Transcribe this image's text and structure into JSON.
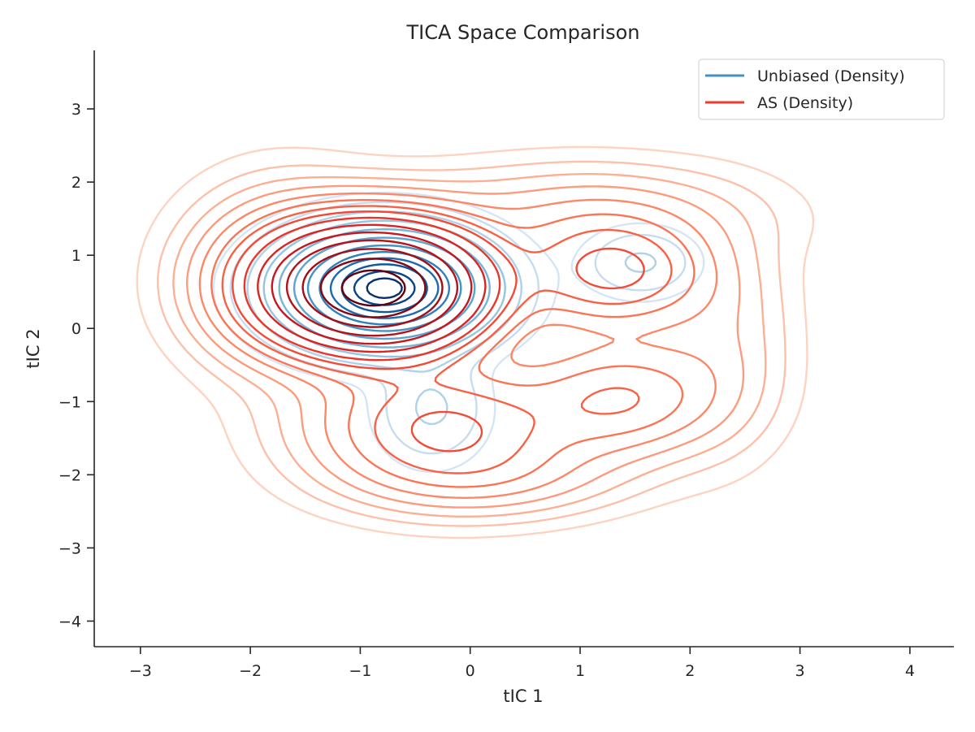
{
  "chart_data": {
    "type": "contour",
    "title": "TICA Space Comparison",
    "xlabel": "tIC 1",
    "ylabel": "tIC 2",
    "xlim": [
      -3.42,
      4.4
    ],
    "ylim": [
      -4.35,
      3.8
    ],
    "xticks": [
      -3,
      -2,
      -1,
      0,
      1,
      2,
      3,
      4
    ],
    "xtick_labels": [
      "−3",
      "−2",
      "−1",
      "0",
      "1",
      "2",
      "3",
      "4"
    ],
    "yticks": [
      -4,
      -3,
      -2,
      -1,
      0,
      1,
      2,
      3
    ],
    "ytick_labels": [
      "−4",
      "−3",
      "−2",
      "−1",
      "0",
      "1",
      "2",
      "3"
    ],
    "grid": false,
    "legend_position": "top-right",
    "series": [
      {
        "name": "Unbiased (Density)",
        "color": "#4292c6",
        "colormap": "Blues",
        "components": [
          {
            "cx": -0.78,
            "cy": 0.55,
            "sx": 0.5,
            "sy": 0.42,
            "w": 1.0
          },
          {
            "cx": 1.55,
            "cy": 0.9,
            "sx": 0.3,
            "sy": 0.28,
            "w": 0.05
          },
          {
            "cx": -0.35,
            "cy": -1.1,
            "sx": 0.3,
            "sy": 0.45,
            "w": 0.05
          }
        ],
        "levels": [
          0.008,
          0.02,
          0.045,
          0.09,
          0.16,
          0.26,
          0.38,
          0.5,
          0.62,
          0.74,
          0.86,
          0.95
        ]
      },
      {
        "name": "AS (Density)",
        "color": "#ef3b2c",
        "colormap": "Reds",
        "components": [
          {
            "cx": -0.85,
            "cy": 0.55,
            "sx": 0.6,
            "sy": 0.52,
            "w": 1.0
          },
          {
            "cx": 1.3,
            "cy": 0.75,
            "sx": 0.55,
            "sy": 0.48,
            "w": 0.16
          },
          {
            "cx": 1.4,
            "cy": -0.95,
            "sx": 0.55,
            "sy": 0.5,
            "w": 0.11
          },
          {
            "cx": -0.25,
            "cy": -1.35,
            "sx": 0.75,
            "sy": 0.55,
            "w": 0.16
          },
          {
            "cx": -1.7,
            "cy": 0.7,
            "sx": 0.55,
            "sy": 0.75,
            "w": 0.09
          },
          {
            "cx": 1.0,
            "cy": 1.55,
            "sx": 1.0,
            "sy": 0.45,
            "w": 0.05
          },
          {
            "cx": 2.3,
            "cy": -0.2,
            "sx": 0.4,
            "sy": 0.9,
            "w": 0.035
          },
          {
            "cx": 0.2,
            "cy": -2.05,
            "sx": 0.8,
            "sy": 0.35,
            "w": 0.04
          }
        ],
        "levels": [
          0.006,
          0.014,
          0.025,
          0.04,
          0.06,
          0.085,
          0.115,
          0.15,
          0.2,
          0.27,
          0.36,
          0.47,
          0.6,
          0.75,
          0.9
        ]
      }
    ]
  }
}
